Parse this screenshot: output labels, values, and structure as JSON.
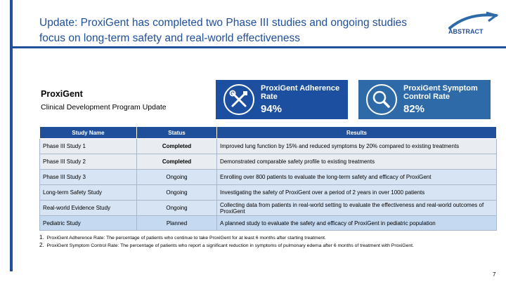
{
  "header": {
    "title": "Update: ProxiGent has completed two Phase III studies and ongoing studies focus on long-term safety and real-world effectiveness",
    "logo_text": "ABSTRACT"
  },
  "drug": {
    "name": "ProxiGent",
    "subtitle": "Clinical Development Program Update"
  },
  "kpis": [
    {
      "label": "ProxiGent Adherence Rate",
      "value": "94%",
      "icon": "tools-icon",
      "color": "#1c4f9f"
    },
    {
      "label": "ProxiGent Symptom Control Rate",
      "value": "82%",
      "icon": "magnifier-icon",
      "color": "#2e6aa8"
    }
  ],
  "table": {
    "headers": [
      "Study Name",
      "Status",
      "Results"
    ],
    "rows": [
      {
        "name": "Phase III Study 1",
        "status": "Completed",
        "result": "Improved lung function by 15% and reduced symptoms by 20% compared to existing treatments"
      },
      {
        "name": "Phase III Study 2",
        "status": "Completed",
        "result": "Demonstrated comparable safety profile to existing treatments"
      },
      {
        "name": "Phase III Study 3",
        "status": "Ongoing",
        "result": "Enrolling over 800 patients to evaluate the long-term safety and efficacy of ProxiGent"
      },
      {
        "name": "Long-term Safety Study",
        "status": "Ongoing",
        "result": "Investigating the safety of ProxiGent over a period of 2 years in over 1000 patients"
      },
      {
        "name": "Real-world Evidence Study",
        "status": "Ongoing",
        "result": "Collecting data from patients in real-world setting to evaluate the effectiveness and real-world outcomes of ProxiGent"
      },
      {
        "name": "Pediatric Study",
        "status": "Planned",
        "result": "A planned study to evaluate the safety and efficacy of ProxiGent in pediatric population"
      }
    ]
  },
  "footnotes": [
    {
      "num": "1.",
      "text": "ProxiGent Adherence Rate: The percentage of patients who continue to take ProxiGent for at least 6 months after starting treatment."
    },
    {
      "num": "2.",
      "text": "ProxiGent Symptom Control Rate: The percentage of patients who report a significant reduction in symptoms of pulmonary edema after 6 months of treatment with ProxiGent."
    }
  ],
  "page_number": "7",
  "colors": {
    "accent": "#1f4e9b",
    "kpi_1": "#1c4f9f",
    "kpi_2": "#2e6aa8"
  }
}
